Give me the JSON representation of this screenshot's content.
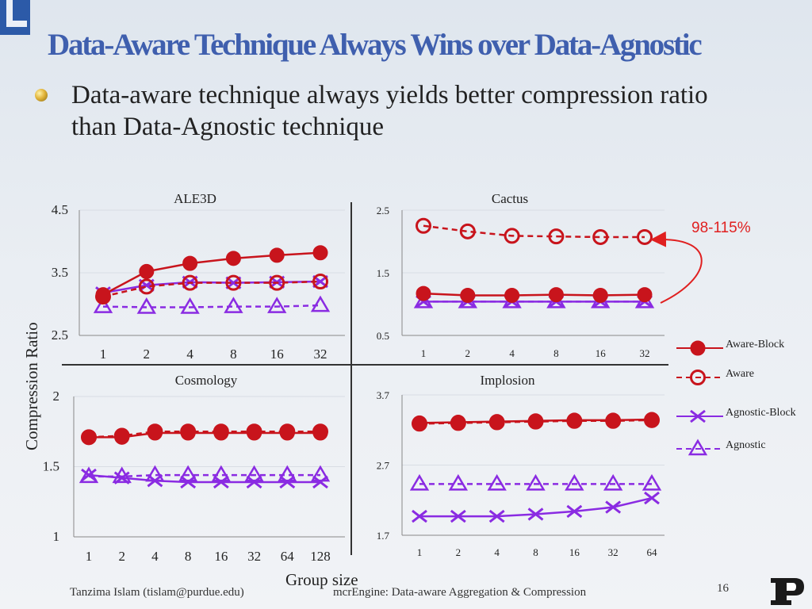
{
  "slide": {
    "title": "Data-Aware Technique Always Wins over Data-Agnostic",
    "bullet": "Data-aware technique always yields better compression ratio than Data-Agnostic technique",
    "footer_left": "Tanzima Islam (tislam@purdue.edu)",
    "footer_center": "mcrEngine: Data-aware Aggregation & Compression",
    "page_number": "16",
    "y_axis_label": "Compression Ratio",
    "x_axis_label": "Group size",
    "annotation": "98-115%",
    "colors": {
      "title": "#3f5fae",
      "red": "#c8141c",
      "purple": "#8a2be2",
      "annotation": "#e02020"
    }
  },
  "legend": [
    {
      "name": "Aware-Block",
      "marker": "filled-circle",
      "line": "solid"
    },
    {
      "name": "Aware",
      "marker": "hollow-circle",
      "line": "dashed"
    },
    {
      "name": "Agnostic-Block",
      "marker": "x-mark",
      "line": "solid"
    },
    {
      "name": "Agnostic",
      "marker": "hollow-triangle",
      "line": "dashed"
    }
  ],
  "chart_data": [
    {
      "type": "line",
      "title": "ALE3D",
      "categories": [
        "1",
        "2",
        "4",
        "8",
        "16",
        "32"
      ],
      "ylim": [
        2.5,
        4.5
      ],
      "yticks": [
        "2.5",
        "3.5",
        "4.5"
      ],
      "grid": true,
      "series": [
        {
          "name": "Aware-Block",
          "values": [
            3.15,
            3.52,
            3.65,
            3.73,
            3.78,
            3.82
          ]
        },
        {
          "name": "Aware",
          "values": [
            3.12,
            3.28,
            3.34,
            3.34,
            3.34,
            3.36
          ]
        },
        {
          "name": "Agnostic-Block",
          "values": [
            3.18,
            3.3,
            3.35,
            3.34,
            3.35,
            3.36
          ]
        },
        {
          "name": "Agnostic",
          "values": [
            2.96,
            2.95,
            2.95,
            2.96,
            2.96,
            2.98
          ]
        }
      ]
    },
    {
      "type": "line",
      "title": "Cactus",
      "categories": [
        "1",
        "2",
        "4",
        "8",
        "16",
        "32"
      ],
      "ylim": [
        0.5,
        2.5
      ],
      "yticks": [
        "0.5",
        "1.5",
        "2.5"
      ],
      "grid": true,
      "series": [
        {
          "name": "Aware-Block",
          "values": [
            1.17,
            1.14,
            1.14,
            1.15,
            1.14,
            1.15
          ]
        },
        {
          "name": "Aware",
          "values": [
            2.25,
            2.16,
            2.09,
            2.08,
            2.07,
            2.07
          ]
        },
        {
          "name": "Agnostic-Block",
          "values": [
            1.04,
            1.04,
            1.04,
            1.04,
            1.04,
            1.04
          ]
        },
        {
          "name": "Agnostic",
          "values": [
            1.04,
            1.04,
            1.04,
            1.04,
            1.04,
            1.04
          ]
        }
      ]
    },
    {
      "type": "line",
      "title": "Cosmology",
      "categories": [
        "1",
        "2",
        "4",
        "8",
        "16",
        "32",
        "64",
        "128"
      ],
      "ylim": [
        1,
        2
      ],
      "yticks": [
        "1",
        "1.5",
        "2"
      ],
      "grid": true,
      "series": [
        {
          "name": "Aware-Block",
          "values": [
            1.71,
            1.71,
            1.74,
            1.74,
            1.74,
            1.74,
            1.74,
            1.74
          ]
        },
        {
          "name": "Aware",
          "values": [
            1.71,
            1.72,
            1.75,
            1.75,
            1.75,
            1.75,
            1.75,
            1.75
          ]
        },
        {
          "name": "Agnostic-Block",
          "values": [
            1.44,
            1.42,
            1.4,
            1.39,
            1.39,
            1.39,
            1.39,
            1.39
          ]
        },
        {
          "name": "Agnostic",
          "values": [
            1.43,
            1.43,
            1.44,
            1.44,
            1.44,
            1.44,
            1.44,
            1.44
          ]
        }
      ]
    },
    {
      "type": "line",
      "title": "Implosion",
      "categories": [
        "1",
        "2",
        "4",
        "8",
        "16",
        "32",
        "64"
      ],
      "ylim": [
        1.7,
        3.7
      ],
      "yticks": [
        "1.7",
        "2.7",
        "3.7"
      ],
      "grid": true,
      "series": [
        {
          "name": "Aware-Block",
          "values": [
            3.3,
            3.31,
            3.32,
            3.33,
            3.34,
            3.34,
            3.35
          ]
        },
        {
          "name": "Aware",
          "values": [
            3.29,
            3.3,
            3.31,
            3.32,
            3.33,
            3.33,
            3.34
          ]
        },
        {
          "name": "Agnostic-Block",
          "values": [
            1.97,
            1.97,
            1.97,
            2.0,
            2.04,
            2.1,
            2.23
          ]
        },
        {
          "name": "Agnostic",
          "values": [
            2.43,
            2.43,
            2.43,
            2.43,
            2.43,
            2.43,
            2.43
          ]
        }
      ]
    }
  ]
}
